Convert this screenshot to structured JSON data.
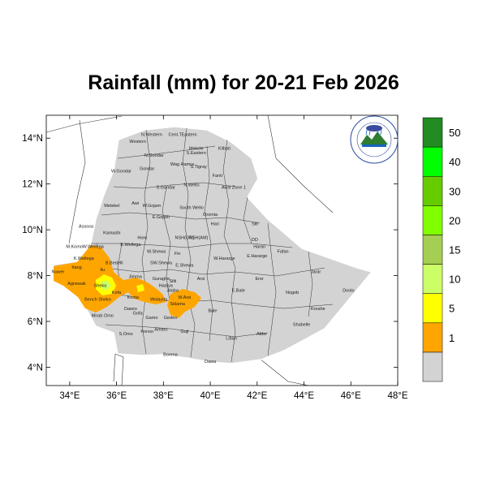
{
  "title": "Rainfall (mm) for 20-21 Feb 2026",
  "map": {
    "lon_range": [
      33,
      48
    ],
    "lat_range": [
      3.2,
      15
    ],
    "x_ticks": [
      {
        "lon": 34,
        "label": "34°E"
      },
      {
        "lon": 36,
        "label": "36°E"
      },
      {
        "lon": 38,
        "label": "38°E"
      },
      {
        "lon": 40,
        "label": "40°E"
      },
      {
        "lon": 42,
        "label": "42°E"
      },
      {
        "lon": 44,
        "label": "44°E"
      },
      {
        "lon": 46,
        "label": "46°E"
      },
      {
        "lon": 48,
        "label": "48°E"
      }
    ],
    "y_ticks": [
      {
        "lat": 4,
        "label": "4°N"
      },
      {
        "lat": 6,
        "label": "6°N"
      },
      {
        "lat": 8,
        "label": "8°N"
      },
      {
        "lat": 10,
        "label": "10°N"
      },
      {
        "lat": 12,
        "label": "12°N"
      },
      {
        "lat": 14,
        "label": "14°N"
      }
    ],
    "land_color": "#d3d3d3",
    "regions": [
      {
        "name": "N.Western",
        "lon": 37.5,
        "lat": 14.1
      },
      {
        "name": "Cent.T",
        "lon": 38.5,
        "lat": 14.1
      },
      {
        "name": "Eastern",
        "lon": 39.1,
        "lat": 14.1
      },
      {
        "name": "Western",
        "lon": 36.9,
        "lat": 13.8
      },
      {
        "name": "Mekele",
        "lon": 39.4,
        "lat": 13.5
      },
      {
        "name": "S.Eastern",
        "lon": 39.4,
        "lat": 13.3
      },
      {
        "name": "Kilbati",
        "lon": 40.6,
        "lat": 13.5
      },
      {
        "name": "N.Gondar",
        "lon": 37.6,
        "lat": 13.2
      },
      {
        "name": "Wag Hamra",
        "lon": 38.8,
        "lat": 12.8
      },
      {
        "name": "S.Tigray",
        "lon": 39.5,
        "lat": 12.7
      },
      {
        "name": "W.Gondar",
        "lon": 36.2,
        "lat": 12.5
      },
      {
        "name": "Gondar",
        "lon": 37.3,
        "lat": 12.6
      },
      {
        "name": "Fanti",
        "lon": 40.3,
        "lat": 12.3
      },
      {
        "name": "S.Gondar",
        "lon": 38.1,
        "lat": 11.8
      },
      {
        "name": "N.Wello",
        "lon": 39.2,
        "lat": 11.9
      },
      {
        "name": "Awsi Zone 1",
        "lon": 41.0,
        "lat": 11.8
      },
      {
        "name": "Metekel",
        "lon": 35.8,
        "lat": 11.0
      },
      {
        "name": "Awi",
        "lon": 36.8,
        "lat": 11.1
      },
      {
        "name": "W.Gojam",
        "lon": 37.5,
        "lat": 11.0
      },
      {
        "name": "E.Gojam",
        "lon": 37.9,
        "lat": 10.5
      },
      {
        "name": "South Wello",
        "lon": 39.2,
        "lat": 10.9
      },
      {
        "name": "Oromia",
        "lon": 40.0,
        "lat": 10.6
      },
      {
        "name": "Hari",
        "lon": 40.2,
        "lat": 10.2
      },
      {
        "name": "Siti",
        "lon": 41.9,
        "lat": 10.2
      },
      {
        "name": "Assosa",
        "lon": 34.7,
        "lat": 10.1
      },
      {
        "name": "Kamashi",
        "lon": 35.8,
        "lat": 9.8
      },
      {
        "name": "Horo",
        "lon": 37.1,
        "lat": 9.6
      },
      {
        "name": "NSH(OR)",
        "lon": 38.9,
        "lat": 9.6
      },
      {
        "name": "NSH(AM)",
        "lon": 39.5,
        "lat": 9.6
      },
      {
        "name": "DD",
        "lon": 41.9,
        "lat": 9.5
      },
      {
        "name": "Harari",
        "lon": 42.1,
        "lat": 9.2
      },
      {
        "name": "Fafan",
        "lon": 43.1,
        "lat": 9.0
      },
      {
        "name": "M.Komo",
        "lon": 34.2,
        "lat": 9.2
      },
      {
        "name": "W.Wellega",
        "lon": 35.0,
        "lat": 9.2
      },
      {
        "name": "E.Wellega",
        "lon": 36.6,
        "lat": 9.3
      },
      {
        "name": "W.Shewa",
        "lon": 37.7,
        "lat": 9.0
      },
      {
        "name": "Fin",
        "lon": 38.6,
        "lat": 8.9
      },
      {
        "name": "W.Hararge",
        "lon": 40.6,
        "lat": 8.7
      },
      {
        "name": "E.Hararge",
        "lon": 42.0,
        "lat": 8.8
      },
      {
        "name": "K.Wellega",
        "lon": 34.6,
        "lat": 8.7
      },
      {
        "name": "B.Bedelli",
        "lon": 35.9,
        "lat": 8.5
      },
      {
        "name": "SW.Shewa",
        "lon": 37.9,
        "lat": 8.5
      },
      {
        "name": "E.Shewa",
        "lon": 38.9,
        "lat": 8.4
      },
      {
        "name": "Jarar",
        "lon": 44.5,
        "lat": 8.1
      },
      {
        "name": "Itang",
        "lon": 34.3,
        "lat": 8.3
      },
      {
        "name": "Nuwer",
        "lon": 33.5,
        "lat": 8.1
      },
      {
        "name": "Ilu",
        "lon": 35.4,
        "lat": 8.2
      },
      {
        "name": "Jimma",
        "lon": 36.8,
        "lat": 7.9
      },
      {
        "name": "Arsi",
        "lon": 39.6,
        "lat": 7.8
      },
      {
        "name": "Erer",
        "lon": 42.1,
        "lat": 7.8
      },
      {
        "name": "Agnewak",
        "lon": 34.3,
        "lat": 7.6
      },
      {
        "name": "Sheka",
        "lon": 35.3,
        "lat": 7.5
      },
      {
        "name": "Kefa",
        "lon": 36.0,
        "lat": 7.2
      },
      {
        "name": "Guraghe",
        "lon": 37.9,
        "lat": 7.8
      },
      {
        "name": "Hadiya",
        "lon": 38.1,
        "lat": 7.5
      },
      {
        "name": "Silti",
        "lon": 38.4,
        "lat": 7.7
      },
      {
        "name": "Alaba",
        "lon": 38.4,
        "lat": 7.3
      },
      {
        "name": "E.Bale",
        "lon": 41.2,
        "lat": 7.3
      },
      {
        "name": "Nogob",
        "lon": 43.5,
        "lat": 7.2
      },
      {
        "name": "Doolo",
        "lon": 45.9,
        "lat": 7.3
      },
      {
        "name": "Bench Sheko",
        "lon": 35.2,
        "lat": 6.9
      },
      {
        "name": "Konta",
        "lon": 36.7,
        "lat": 7.0
      },
      {
        "name": "Wolayita",
        "lon": 37.8,
        "lat": 6.9
      },
      {
        "name": "W.Arsi",
        "lon": 38.9,
        "lat": 7.0
      },
      {
        "name": "Sidama",
        "lon": 38.6,
        "lat": 6.7
      },
      {
        "name": "Korahe",
        "lon": 44.6,
        "lat": 6.5
      },
      {
        "name": "Bale",
        "lon": 40.1,
        "lat": 6.4
      },
      {
        "name": "Mirab Omo",
        "lon": 35.4,
        "lat": 6.2
      },
      {
        "name": "Dawro",
        "lon": 36.6,
        "lat": 6.5
      },
      {
        "name": "Gofa",
        "lon": 36.9,
        "lat": 6.3
      },
      {
        "name": "Gamo",
        "lon": 37.5,
        "lat": 6.1
      },
      {
        "name": "Gedeo",
        "lon": 38.3,
        "lat": 6.1
      },
      {
        "name": "Shabelle",
        "lon": 43.9,
        "lat": 5.8
      },
      {
        "name": "S.Omo",
        "lon": 36.4,
        "lat": 5.4
      },
      {
        "name": "Amaro",
        "lon": 37.9,
        "lat": 5.6
      },
      {
        "name": "Konso",
        "lon": 37.3,
        "lat": 5.5
      },
      {
        "name": "Guji",
        "lon": 38.9,
        "lat": 5.5
      },
      {
        "name": "Liban",
        "lon": 40.9,
        "lat": 5.2
      },
      {
        "name": "Afder",
        "lon": 42.2,
        "lat": 5.4
      },
      {
        "name": "Borena",
        "lon": 38.3,
        "lat": 4.5
      },
      {
        "name": "Dawa",
        "lon": 40.0,
        "lat": 4.2
      }
    ]
  },
  "colorbar": {
    "levels": [
      {
        "label": "",
        "color": "#d3d3d3"
      },
      {
        "label": "1",
        "color": "#ffa500"
      },
      {
        "label": "5",
        "color": "#ffff00"
      },
      {
        "label": "10",
        "color": "#ccff66"
      },
      {
        "label": "15",
        "color": "#a4cf52"
      },
      {
        "label": "20",
        "color": "#80ff00"
      },
      {
        "label": "30",
        "color": "#66cc00"
      },
      {
        "label": "40",
        "color": "#00ff00"
      },
      {
        "label": "50",
        "color": "#228b22"
      }
    ]
  }
}
